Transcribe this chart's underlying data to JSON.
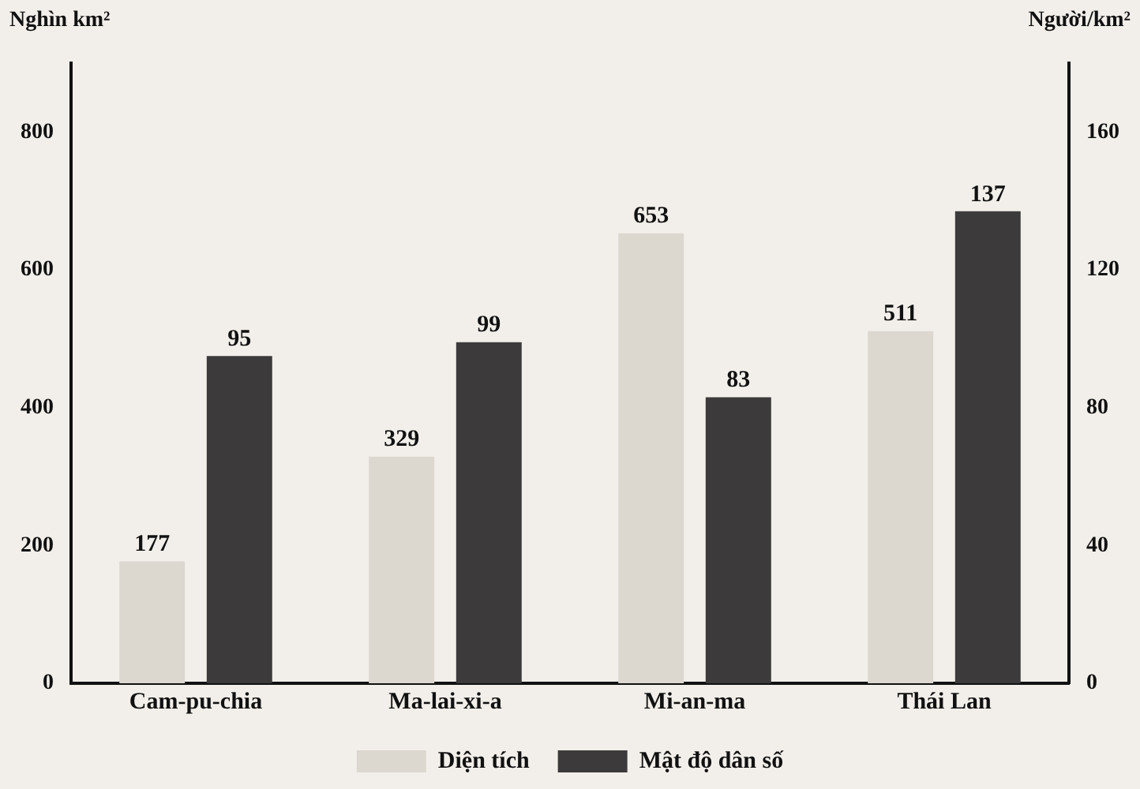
{
  "chart_data": {
    "type": "bar",
    "categories": [
      "Cam-pu-chia",
      "Ma-lai-xi-a",
      "Mi-an-ma",
      "Thái Lan"
    ],
    "series": [
      {
        "name": "Diện tích",
        "color": "#dcd8d0",
        "values": [
          177,
          329,
          653,
          511
        ]
      },
      {
        "name": "Mật độ dân số",
        "color": "#3c3a3a",
        "values": [
          95,
          99,
          83,
          137
        ],
        "axis": "y2"
      }
    ],
    "ylabel": "Nghìn km²",
    "y2label": "Người/km²",
    "ylim": [
      0,
      900
    ],
    "yticks": [
      0,
      200,
      400,
      600,
      800
    ],
    "y2lim": [
      0,
      180
    ],
    "y2ticks": [
      0,
      40,
      80,
      120,
      160
    ],
    "grid": false,
    "data_labels": true,
    "legend": "bottom"
  }
}
